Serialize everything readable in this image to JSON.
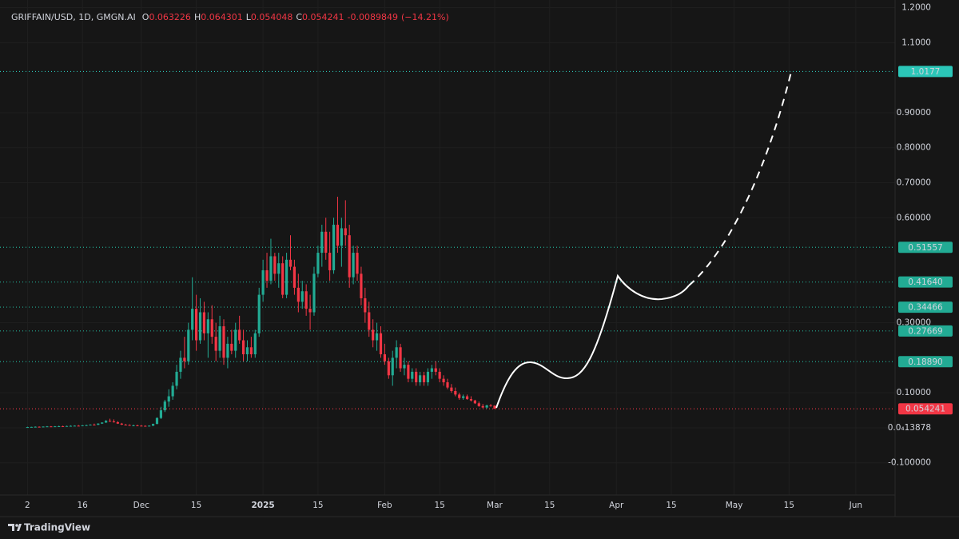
{
  "chart_data": {
    "type": "candlestick",
    "title": "GRIFFAIN/USD, 1D, GMGN.AI",
    "readout": [
      {
        "key": "O",
        "value": 0.063226
      },
      {
        "key": "H",
        "value": 0.064301
      },
      {
        "key": "L",
        "value": 0.054048
      },
      {
        "key": "C",
        "value": 0.054241
      }
    ],
    "change": -0.0089849,
    "change_percent_label": "(−14.21%)",
    "up_color": "#22ab94",
    "down_color": "#f23645",
    "xlim": [
      "2024-10-26",
      "2025-06-11"
    ],
    "xticks": [
      {
        "value": "2024-11-02",
        "label": "2"
      },
      {
        "value": "2024-11-16",
        "label": "16"
      },
      {
        "value": "2024-12-01",
        "label": "Dec"
      },
      {
        "value": "2024-12-15",
        "label": "15"
      },
      {
        "value": "2025-01-01",
        "label": "2025"
      },
      {
        "value": "2025-01-15",
        "label": "15"
      },
      {
        "value": "2025-02-01",
        "label": "Feb"
      },
      {
        "value": "2025-02-15",
        "label": "15"
      },
      {
        "value": "2025-03-01",
        "label": "Mar"
      },
      {
        "value": "2025-03-15",
        "label": "15"
      },
      {
        "value": "2025-04-01",
        "label": "Apr"
      },
      {
        "value": "2025-04-15",
        "label": "15"
      },
      {
        "value": "2025-05-01",
        "label": "May"
      },
      {
        "value": "2025-05-15",
        "label": "15"
      },
      {
        "value": "2025-06-01",
        "label": "Jun"
      }
    ],
    "ylim": [
      -0.192,
      1.222
    ],
    "yticks": [
      {
        "value": 1.2,
        "label": "1.2000"
      },
      {
        "value": 1.1,
        "label": "1.1000"
      },
      {
        "value": 0.9,
        "label": "0.90000"
      },
      {
        "value": 0.8,
        "label": "0.80000"
      },
      {
        "value": 0.7,
        "label": "0.70000"
      },
      {
        "value": 0.6,
        "label": "0.60000"
      },
      {
        "value": 0.3,
        "label": "0.30000"
      },
      {
        "value": 0.1,
        "label": "0.10000"
      },
      {
        "value": 1.3878e-05,
        "label": "0.0₄13878"
      },
      {
        "value": -0.1,
        "label": "-0.100000"
      }
    ],
    "levels": [
      {
        "value": 1.0177,
        "color": "#2bc6b8"
      },
      {
        "value": 0.51557,
        "color": "#22ab94"
      },
      {
        "value": 0.4164,
        "label": "0.41640",
        "color": "#22ab94"
      },
      {
        "value": 0.34466,
        "color": "#22ab94"
      },
      {
        "value": 0.27669,
        "color": "#22ab94"
      },
      {
        "value": 0.1889,
        "label": "0.18890",
        "color": "#22ab94"
      },
      {
        "value": 0.054241,
        "color": "#f23645"
      }
    ],
    "brand": "TradingView",
    "candles": [
      [
        "2024-11-02",
        0.002,
        0.003,
        0.001,
        0.002
      ],
      [
        "2024-11-03",
        0.002,
        0.003,
        0.0015,
        0.0025
      ],
      [
        "2024-11-04",
        0.0025,
        0.004,
        0.002,
        0.003
      ],
      [
        "2024-11-05",
        0.003,
        0.004,
        0.002,
        0.0028
      ],
      [
        "2024-11-06",
        0.0028,
        0.004,
        0.002,
        0.0035
      ],
      [
        "2024-11-07",
        0.0035,
        0.005,
        0.003,
        0.004
      ],
      [
        "2024-11-08",
        0.004,
        0.005,
        0.003,
        0.0038
      ],
      [
        "2024-11-09",
        0.0038,
        0.005,
        0.003,
        0.0042
      ],
      [
        "2024-11-10",
        0.0042,
        0.006,
        0.0035,
        0.0045
      ],
      [
        "2024-11-11",
        0.0045,
        0.006,
        0.004,
        0.004
      ],
      [
        "2024-11-12",
        0.004,
        0.006,
        0.0035,
        0.005
      ],
      [
        "2024-11-13",
        0.005,
        0.007,
        0.0045,
        0.0055
      ],
      [
        "2024-11-14",
        0.0055,
        0.007,
        0.005,
        0.006
      ],
      [
        "2024-11-15",
        0.006,
        0.008,
        0.005,
        0.0058
      ],
      [
        "2024-11-16",
        0.0058,
        0.008,
        0.005,
        0.007
      ],
      [
        "2024-11-17",
        0.007,
        0.009,
        0.006,
        0.0075
      ],
      [
        "2024-11-18",
        0.0075,
        0.01,
        0.007,
        0.009
      ],
      [
        "2024-11-19",
        0.009,
        0.012,
        0.008,
        0.0085
      ],
      [
        "2024-11-20",
        0.0085,
        0.013,
        0.008,
        0.012
      ],
      [
        "2024-11-21",
        0.012,
        0.016,
        0.011,
        0.015
      ],
      [
        "2024-11-22",
        0.015,
        0.022,
        0.014,
        0.02
      ],
      [
        "2024-11-23",
        0.02,
        0.026,
        0.017,
        0.018
      ],
      [
        "2024-11-24",
        0.018,
        0.024,
        0.015,
        0.016
      ],
      [
        "2024-11-25",
        0.016,
        0.019,
        0.011,
        0.012
      ],
      [
        "2024-11-26",
        0.012,
        0.014,
        0.008,
        0.009
      ],
      [
        "2024-11-27",
        0.009,
        0.011,
        0.007,
        0.008
      ],
      [
        "2024-11-28",
        0.008,
        0.01,
        0.006,
        0.0065
      ],
      [
        "2024-11-29",
        0.0065,
        0.009,
        0.005,
        0.007
      ],
      [
        "2024-11-30",
        0.007,
        0.009,
        0.005,
        0.006
      ],
      [
        "2024-12-01",
        0.006,
        0.008,
        0.005,
        0.0055
      ],
      [
        "2024-12-02",
        0.0055,
        0.007,
        0.004,
        0.005
      ],
      [
        "2024-12-03",
        0.005,
        0.007,
        0.004,
        0.006
      ],
      [
        "2024-12-04",
        0.006,
        0.012,
        0.005,
        0.011
      ],
      [
        "2024-12-05",
        0.011,
        0.03,
        0.01,
        0.028
      ],
      [
        "2024-12-06",
        0.028,
        0.06,
        0.025,
        0.05
      ],
      [
        "2024-12-07",
        0.05,
        0.08,
        0.045,
        0.075
      ],
      [
        "2024-12-08",
        0.075,
        0.11,
        0.06,
        0.09
      ],
      [
        "2024-12-09",
        0.09,
        0.13,
        0.08,
        0.12
      ],
      [
        "2024-12-10",
        0.12,
        0.18,
        0.11,
        0.16
      ],
      [
        "2024-12-11",
        0.16,
        0.22,
        0.14,
        0.2
      ],
      [
        "2024-12-12",
        0.2,
        0.26,
        0.17,
        0.19
      ],
      [
        "2024-12-13",
        0.19,
        0.3,
        0.18,
        0.28
      ],
      [
        "2024-12-14",
        0.28,
        0.43,
        0.25,
        0.34
      ],
      [
        "2024-12-15",
        0.34,
        0.38,
        0.22,
        0.25
      ],
      [
        "2024-12-16",
        0.25,
        0.37,
        0.24,
        0.33
      ],
      [
        "2024-12-17",
        0.33,
        0.36,
        0.25,
        0.27
      ],
      [
        "2024-12-18",
        0.27,
        0.33,
        0.2,
        0.31
      ],
      [
        "2024-12-19",
        0.31,
        0.35,
        0.24,
        0.26
      ],
      [
        "2024-12-20",
        0.26,
        0.3,
        0.19,
        0.22
      ],
      [
        "2024-12-21",
        0.22,
        0.32,
        0.2,
        0.29
      ],
      [
        "2024-12-22",
        0.29,
        0.31,
        0.18,
        0.2
      ],
      [
        "2024-12-23",
        0.2,
        0.26,
        0.17,
        0.24
      ],
      [
        "2024-12-24",
        0.24,
        0.28,
        0.21,
        0.22
      ],
      [
        "2024-12-25",
        0.22,
        0.3,
        0.2,
        0.28
      ],
      [
        "2024-12-26",
        0.28,
        0.32,
        0.24,
        0.25
      ],
      [
        "2024-12-27",
        0.25,
        0.28,
        0.19,
        0.21
      ],
      [
        "2024-12-28",
        0.21,
        0.25,
        0.19,
        0.23
      ],
      [
        "2024-12-29",
        0.23,
        0.26,
        0.2,
        0.21
      ],
      [
        "2024-12-30",
        0.21,
        0.28,
        0.2,
        0.27
      ],
      [
        "2024-12-31",
        0.27,
        0.4,
        0.26,
        0.38
      ],
      [
        "2025-01-01",
        0.38,
        0.48,
        0.36,
        0.45
      ],
      [
        "2025-01-02",
        0.45,
        0.5,
        0.4,
        0.42
      ],
      [
        "2025-01-03",
        0.42,
        0.54,
        0.41,
        0.49
      ],
      [
        "2025-01-04",
        0.49,
        0.5,
        0.42,
        0.44
      ],
      [
        "2025-01-05",
        0.44,
        0.5,
        0.4,
        0.47
      ],
      [
        "2025-01-06",
        0.47,
        0.49,
        0.37,
        0.38
      ],
      [
        "2025-01-07",
        0.38,
        0.5,
        0.37,
        0.48
      ],
      [
        "2025-01-08",
        0.48,
        0.55,
        0.45,
        0.46
      ],
      [
        "2025-01-09",
        0.46,
        0.48,
        0.38,
        0.4
      ],
      [
        "2025-01-10",
        0.4,
        0.44,
        0.33,
        0.36
      ],
      [
        "2025-01-11",
        0.36,
        0.42,
        0.34,
        0.39
      ],
      [
        "2025-01-12",
        0.39,
        0.41,
        0.32,
        0.34
      ],
      [
        "2025-01-13",
        0.34,
        0.38,
        0.28,
        0.33
      ],
      [
        "2025-01-14",
        0.33,
        0.46,
        0.32,
        0.44
      ],
      [
        "2025-01-15",
        0.44,
        0.52,
        0.43,
        0.5
      ],
      [
        "2025-01-16",
        0.5,
        0.58,
        0.46,
        0.56
      ],
      [
        "2025-01-17",
        0.56,
        0.6,
        0.48,
        0.5
      ],
      [
        "2025-01-18",
        0.5,
        0.56,
        0.42,
        0.45
      ],
      [
        "2025-01-19",
        0.45,
        0.6,
        0.44,
        0.58
      ],
      [
        "2025-01-20",
        0.58,
        0.66,
        0.5,
        0.52
      ],
      [
        "2025-01-21",
        0.52,
        0.6,
        0.46,
        0.57
      ],
      [
        "2025-01-22",
        0.57,
        0.65,
        0.52,
        0.55
      ],
      [
        "2025-01-23",
        0.55,
        0.58,
        0.4,
        0.43
      ],
      [
        "2025-01-24",
        0.43,
        0.52,
        0.41,
        0.5
      ],
      [
        "2025-01-25",
        0.5,
        0.52,
        0.42,
        0.44
      ],
      [
        "2025-01-26",
        0.44,
        0.46,
        0.35,
        0.37
      ],
      [
        "2025-01-27",
        0.37,
        0.4,
        0.3,
        0.33
      ],
      [
        "2025-01-28",
        0.33,
        0.36,
        0.26,
        0.28
      ],
      [
        "2025-01-29",
        0.28,
        0.31,
        0.23,
        0.25
      ],
      [
        "2025-01-30",
        0.25,
        0.3,
        0.22,
        0.27
      ],
      [
        "2025-01-31",
        0.27,
        0.29,
        0.2,
        0.21
      ],
      [
        "2025-02-01",
        0.21,
        0.24,
        0.18,
        0.19
      ],
      [
        "2025-02-02",
        0.19,
        0.2,
        0.14,
        0.15
      ],
      [
        "2025-02-03",
        0.15,
        0.22,
        0.12,
        0.2
      ],
      [
        "2025-02-04",
        0.2,
        0.25,
        0.17,
        0.23
      ],
      [
        "2025-02-05",
        0.23,
        0.24,
        0.16,
        0.17
      ],
      [
        "2025-02-06",
        0.17,
        0.2,
        0.15,
        0.18
      ],
      [
        "2025-02-07",
        0.18,
        0.19,
        0.13,
        0.14
      ],
      [
        "2025-02-08",
        0.14,
        0.17,
        0.13,
        0.16
      ],
      [
        "2025-02-09",
        0.16,
        0.17,
        0.12,
        0.13
      ],
      [
        "2025-02-10",
        0.13,
        0.16,
        0.12,
        0.15
      ],
      [
        "2025-02-11",
        0.15,
        0.16,
        0.12,
        0.13
      ],
      [
        "2025-02-12",
        0.13,
        0.17,
        0.12,
        0.16
      ],
      [
        "2025-02-13",
        0.16,
        0.18,
        0.14,
        0.17
      ],
      [
        "2025-02-14",
        0.17,
        0.19,
        0.15,
        0.16
      ],
      [
        "2025-02-15",
        0.16,
        0.17,
        0.13,
        0.14
      ],
      [
        "2025-02-16",
        0.14,
        0.15,
        0.12,
        0.13
      ],
      [
        "2025-02-17",
        0.13,
        0.14,
        0.11,
        0.115
      ],
      [
        "2025-02-18",
        0.115,
        0.125,
        0.1,
        0.105
      ],
      [
        "2025-02-19",
        0.105,
        0.115,
        0.09,
        0.095
      ],
      [
        "2025-02-20",
        0.095,
        0.1,
        0.08,
        0.085
      ],
      [
        "2025-02-21",
        0.085,
        0.095,
        0.08,
        0.09
      ],
      [
        "2025-02-22",
        0.09,
        0.095,
        0.08,
        0.082
      ],
      [
        "2025-02-23",
        0.082,
        0.09,
        0.075,
        0.078
      ],
      [
        "2025-02-24",
        0.078,
        0.08,
        0.068,
        0.07
      ],
      [
        "2025-02-25",
        0.07,
        0.075,
        0.06,
        0.062
      ],
      [
        "2025-02-26",
        0.062,
        0.068,
        0.056,
        0.058
      ],
      [
        "2025-02-27",
        0.058,
        0.066,
        0.055,
        0.064
      ],
      [
        "2025-02-28",
        0.064,
        0.068,
        0.06,
        0.063226
      ],
      [
        "2025-03-01",
        0.063226,
        0.064301,
        0.054048,
        0.054241
      ]
    ]
  }
}
